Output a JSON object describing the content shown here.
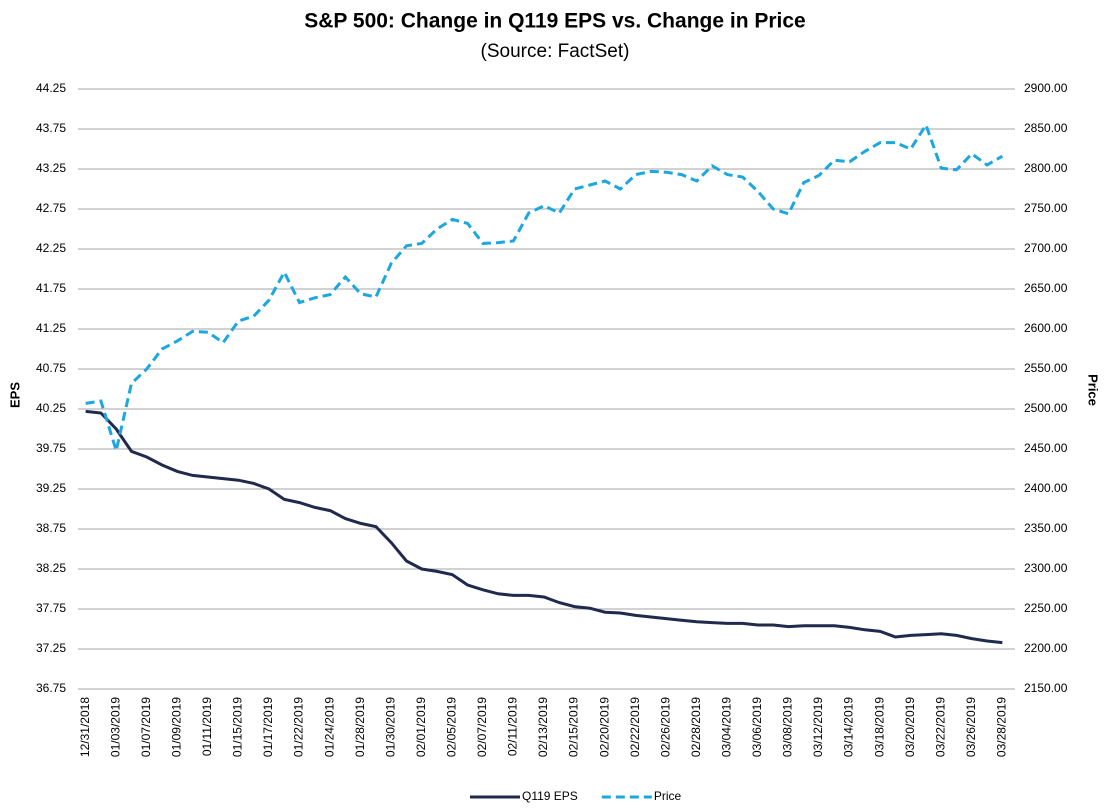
{
  "chart_data": {
    "type": "line",
    "title": "S&P 500: Change in Q119 EPS vs. Change in Price",
    "subtitle": "(Source: FactSet)",
    "y_label": "EPS",
    "y2_label": "Price",
    "categories": [
      "12/31/2018",
      null,
      "01/03/2019",
      null,
      "01/07/2019",
      null,
      "01/09/2019",
      null,
      "01/11/2019",
      null,
      "01/15/2019",
      null,
      "01/17/2019",
      null,
      "01/22/2019",
      null,
      "01/24/2019",
      null,
      "01/28/2019",
      null,
      "01/30/2019",
      null,
      "02/01/2019",
      null,
      "02/05/2019",
      null,
      "02/07/2019",
      null,
      "02/11/2019",
      null,
      "02/13/2019",
      null,
      "02/15/2019",
      null,
      "02/20/2019",
      null,
      "02/22/2019",
      null,
      "02/26/2019",
      null,
      "02/28/2019",
      null,
      "03/04/2019",
      null,
      "03/06/2019",
      null,
      "03/08/2019",
      null,
      "03/12/2019",
      null,
      "03/14/2019",
      null,
      "03/18/2019",
      null,
      "03/20/2019",
      null,
      "03/22/2019",
      null,
      "03/26/2019",
      null,
      "03/28/2019"
    ],
    "series": [
      {
        "name": "Q119 EPS",
        "color": "#1f2a4d",
        "linestyle": "solid",
        "axis": "y",
        "values": [
          40.22,
          40.2,
          40.0,
          39.72,
          39.65,
          39.55,
          39.47,
          39.42,
          39.4,
          39.38,
          39.36,
          39.32,
          39.25,
          39.12,
          39.08,
          39.02,
          38.98,
          38.88,
          38.82,
          38.78,
          38.58,
          38.35,
          38.25,
          38.22,
          38.18,
          38.05,
          37.99,
          37.94,
          37.92,
          37.92,
          37.9,
          37.83,
          37.78,
          37.76,
          37.71,
          37.7,
          37.67,
          37.65,
          37.63,
          37.61,
          37.59,
          37.58,
          37.57,
          37.57,
          37.55,
          37.55,
          37.53,
          37.54,
          37.54,
          37.54,
          37.52,
          37.49,
          37.47,
          37.4,
          37.42,
          37.43,
          37.44,
          37.42,
          37.38,
          37.35,
          37.33
        ]
      },
      {
        "name": "Price",
        "color": "#1ba7e0",
        "linestyle": "dashed",
        "axis": "y2",
        "values": [
          2507,
          2510,
          2448,
          2532,
          2550,
          2575,
          2585,
          2597,
          2596,
          2583,
          2610,
          2616,
          2636,
          2671,
          2633,
          2639,
          2643,
          2665,
          2644,
          2640,
          2682,
          2704,
          2707,
          2725,
          2737,
          2732,
          2707,
          2708,
          2710,
          2745,
          2754,
          2745,
          2775,
          2780,
          2785,
          2775,
          2793,
          2797,
          2796,
          2793,
          2785,
          2804,
          2793,
          2790,
          2772,
          2750,
          2744,
          2783,
          2792,
          2811,
          2809,
          2822,
          2833,
          2833,
          2825,
          2855,
          2801,
          2799,
          2819,
          2805,
          2816
        ]
      }
    ],
    "ylim": [
      36.75,
      44.25
    ],
    "yticks": [
      36.75,
      37.25,
      37.75,
      38.25,
      38.75,
      39.25,
      39.75,
      40.25,
      40.75,
      41.25,
      41.75,
      42.25,
      42.75,
      43.25,
      43.75,
      44.25
    ],
    "y2lim": [
      2150,
      2900
    ],
    "y2ticks": [
      {
        "value": 2150,
        "label": "2150.00"
      },
      {
        "value": 2200,
        "label": "2200.00"
      },
      {
        "value": 2250,
        "label": "2250.00"
      },
      {
        "value": 2300,
        "label": "2300.00"
      },
      {
        "value": 2350,
        "label": "2350.00"
      },
      {
        "value": 2400,
        "label": "2400.00"
      },
      {
        "value": 2450,
        "label": "2450.00"
      },
      {
        "value": 2500,
        "label": "2500.00"
      },
      {
        "value": 2550,
        "label": "2550.00"
      },
      {
        "value": 2600,
        "label": "2600.00"
      },
      {
        "value": 2650,
        "label": "2650.00"
      },
      {
        "value": 2700,
        "label": "2700.00"
      },
      {
        "value": 2750,
        "label": "2750.00"
      },
      {
        "value": 2800,
        "label": "2800.00"
      },
      {
        "value": 2850,
        "label": "2850.00"
      },
      {
        "value": 2900,
        "label": "2900.00"
      }
    ],
    "grid": true,
    "legend": "bottom"
  }
}
